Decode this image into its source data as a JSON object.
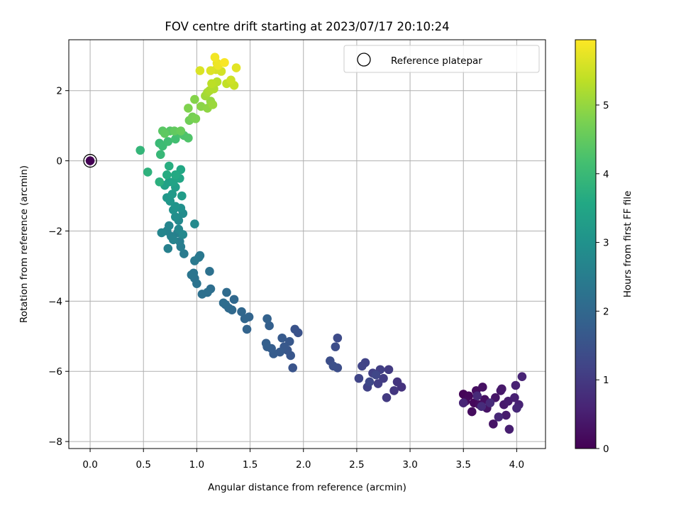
{
  "chart_data": {
    "type": "scatter",
    "title": "FOV centre drift starting at 2023/07/17 20:10:24",
    "xlabel": "Angular distance from reference (arcmin)",
    "ylabel": "Rotation from reference (arcmin)",
    "xlim": [
      -0.2,
      4.27
    ],
    "ylim": [
      -8.2,
      3.45
    ],
    "xticks": [
      0.0,
      0.5,
      1.0,
      1.5,
      2.0,
      2.5,
      3.0,
      3.5,
      4.0
    ],
    "xtick_labels": [
      "0.0",
      "0.5",
      "1.0",
      "1.5",
      "2.0",
      "2.5",
      "3.0",
      "3.5",
      "4.0"
    ],
    "yticks": [
      -8,
      -6,
      -4,
      -2,
      0,
      2
    ],
    "ytick_labels": [
      "−8",
      "−6",
      "−4",
      "−2",
      "0",
      "2"
    ],
    "grid": true,
    "legend": {
      "position": "top-right",
      "entries": [
        "Reference platepar"
      ]
    },
    "reference_point": {
      "x": 0.0,
      "y": 0.0
    },
    "colorbar": {
      "label": "Hours from first FF file",
      "range": [
        0,
        5.95
      ],
      "ticks": [
        0,
        1,
        2,
        3,
        4,
        5
      ],
      "tick_labels": [
        "0",
        "1",
        "2",
        "3",
        "4",
        "5"
      ],
      "colormap": "viridis"
    },
    "series": [
      {
        "points": [
          [
            3.5,
            -6.65,
            0.05
          ],
          [
            3.55,
            -6.7,
            0.1
          ],
          [
            3.6,
            -6.9,
            0.12
          ],
          [
            3.52,
            -6.85,
            0.15
          ],
          [
            3.58,
            -7.15,
            0.18
          ],
          [
            3.65,
            -6.95,
            0.2
          ],
          [
            3.62,
            -6.55,
            0.22
          ],
          [
            3.7,
            -6.8,
            0.25
          ],
          [
            3.68,
            -6.45,
            0.27
          ],
          [
            3.72,
            -7.05,
            0.3
          ],
          [
            3.78,
            -7.5,
            0.32
          ],
          [
            3.8,
            -6.75,
            0.35
          ],
          [
            3.85,
            -6.55,
            0.37
          ],
          [
            3.86,
            -6.5,
            0.4
          ],
          [
            3.88,
            -6.95,
            0.42
          ],
          [
            3.9,
            -7.25,
            0.45
          ],
          [
            3.92,
            -6.85,
            0.47
          ],
          [
            3.93,
            -7.65,
            0.5
          ],
          [
            3.98,
            -6.75,
            0.52
          ],
          [
            3.99,
            -6.4,
            0.55
          ],
          [
            4.02,
            -6.95,
            0.57
          ],
          [
            4.05,
            -6.15,
            0.6
          ],
          [
            3.5,
            -6.9,
            0.62
          ],
          [
            3.83,
            -7.3,
            0.65
          ],
          [
            4.0,
            -7.05,
            0.67
          ],
          [
            3.63,
            -6.7,
            0.7
          ],
          [
            3.75,
            -6.9,
            0.72
          ],
          [
            3.67,
            -7.0,
            0.75
          ],
          [
            2.92,
            -6.45,
            0.85
          ],
          [
            2.88,
            -6.3,
            0.9
          ],
          [
            2.85,
            -6.55,
            0.95
          ],
          [
            2.78,
            -6.75,
            1.0
          ],
          [
            2.8,
            -5.95,
            1.02
          ],
          [
            2.75,
            -6.2,
            1.05
          ],
          [
            2.7,
            -6.35,
            1.08
          ],
          [
            2.72,
            -5.95,
            1.1
          ],
          [
            2.65,
            -6.05,
            1.12
          ],
          [
            2.6,
            -6.45,
            1.15
          ],
          [
            2.58,
            -5.75,
            1.18
          ],
          [
            2.55,
            -5.85,
            1.2
          ],
          [
            2.52,
            -6.2,
            1.22
          ],
          [
            2.68,
            -6.1,
            1.25
          ],
          [
            2.62,
            -6.3,
            1.28
          ],
          [
            2.32,
            -5.05,
            1.35
          ],
          [
            2.3,
            -5.3,
            1.38
          ],
          [
            2.32,
            -5.9,
            1.4
          ],
          [
            2.25,
            -5.7,
            1.42
          ],
          [
            2.28,
            -5.85,
            1.45
          ],
          [
            1.95,
            -4.9,
            1.5
          ],
          [
            1.92,
            -4.8,
            1.52
          ],
          [
            1.9,
            -5.9,
            1.55
          ],
          [
            1.88,
            -5.55,
            1.58
          ],
          [
            1.85,
            -5.4,
            1.6
          ],
          [
            1.87,
            -5.15,
            1.62
          ],
          [
            1.82,
            -5.3,
            1.65
          ],
          [
            1.8,
            -5.05,
            1.67
          ],
          [
            1.78,
            -5.45,
            1.7
          ],
          [
            1.72,
            -5.5,
            1.72
          ],
          [
            1.7,
            -5.35,
            1.75
          ],
          [
            1.66,
            -5.3,
            1.78
          ],
          [
            1.65,
            -5.2,
            1.8
          ],
          [
            1.68,
            -4.7,
            1.82
          ],
          [
            1.66,
            -4.5,
            1.85
          ],
          [
            1.47,
            -4.8,
            1.9
          ],
          [
            1.49,
            -4.45,
            1.92
          ],
          [
            1.45,
            -4.5,
            1.95
          ],
          [
            1.42,
            -4.3,
            1.98
          ],
          [
            1.35,
            -3.95,
            2.0
          ],
          [
            1.33,
            -4.25,
            2.02
          ],
          [
            1.3,
            -4.2,
            2.05
          ],
          [
            1.28,
            -3.75,
            2.07
          ],
          [
            1.27,
            -4.1,
            2.1
          ],
          [
            1.25,
            -4.05,
            2.12
          ],
          [
            1.13,
            -3.65,
            2.15
          ],
          [
            1.1,
            -3.75,
            2.18
          ],
          [
            1.05,
            -3.8,
            2.2
          ],
          [
            1.12,
            -3.15,
            2.22
          ],
          [
            1.0,
            -3.5,
            2.25
          ],
          [
            0.98,
            -3.35,
            2.27
          ],
          [
            0.97,
            -3.2,
            2.3
          ],
          [
            0.95,
            -3.25,
            2.32
          ],
          [
            1.03,
            -2.7,
            2.35
          ],
          [
            1.02,
            -2.75,
            2.37
          ],
          [
            0.98,
            -2.85,
            2.4
          ],
          [
            0.88,
            -2.65,
            2.45
          ],
          [
            0.85,
            -2.45,
            2.5
          ],
          [
            0.84,
            -2.3,
            2.52
          ],
          [
            0.82,
            -2.05,
            2.55
          ],
          [
            0.73,
            -2.5,
            2.57
          ],
          [
            0.76,
            -2.15,
            2.6
          ],
          [
            0.72,
            -2.0,
            2.62
          ],
          [
            0.78,
            -2.25,
            2.65
          ],
          [
            0.67,
            -2.05,
            2.68
          ],
          [
            0.74,
            -1.85,
            2.7
          ],
          [
            0.83,
            -1.95,
            2.72
          ],
          [
            0.87,
            -2.1,
            2.75
          ],
          [
            0.83,
            -1.7,
            2.78
          ],
          [
            0.98,
            -1.8,
            2.8
          ],
          [
            0.87,
            -1.5,
            2.85
          ],
          [
            0.8,
            -1.6,
            2.9
          ],
          [
            0.85,
            -1.35,
            2.95
          ],
          [
            0.78,
            -1.4,
            3.0
          ],
          [
            0.8,
            -1.3,
            3.05
          ],
          [
            0.75,
            -1.15,
            3.1
          ],
          [
            0.72,
            -1.05,
            3.15
          ],
          [
            0.77,
            -0.95,
            3.2
          ],
          [
            0.86,
            -1.0,
            3.25
          ],
          [
            0.8,
            -0.75,
            3.3
          ],
          [
            0.74,
            -0.6,
            3.35
          ],
          [
            0.7,
            -0.7,
            3.4
          ],
          [
            0.78,
            -0.6,
            3.45
          ],
          [
            0.84,
            -0.5,
            3.5
          ],
          [
            0.85,
            -0.25,
            3.55
          ],
          [
            0.8,
            -0.4,
            3.6
          ],
          [
            0.72,
            -0.4,
            3.65
          ],
          [
            0.74,
            -0.15,
            3.7
          ],
          [
            0.65,
            -0.6,
            3.75
          ],
          [
            0.54,
            -0.32,
            3.8
          ],
          [
            0.47,
            0.3,
            3.9
          ],
          [
            0.66,
            0.18,
            3.95
          ],
          [
            0.65,
            0.5,
            4.0
          ],
          [
            0.68,
            0.42,
            4.05
          ],
          [
            0.73,
            0.55,
            4.1
          ],
          [
            0.8,
            0.62,
            4.15
          ],
          [
            0.84,
            0.78,
            4.2
          ],
          [
            0.88,
            0.72,
            4.25
          ],
          [
            0.92,
            0.65,
            4.3
          ],
          [
            0.75,
            0.85,
            4.35
          ],
          [
            0.68,
            0.85,
            4.4
          ],
          [
            0.7,
            0.78,
            4.45
          ],
          [
            0.79,
            0.85,
            4.5
          ],
          [
            0.85,
            0.85,
            4.55
          ],
          [
            0.93,
            1.15,
            4.65
          ],
          [
            0.96,
            1.25,
            4.7
          ],
          [
            0.99,
            1.2,
            4.75
          ],
          [
            0.92,
            1.5,
            4.8
          ],
          [
            0.98,
            1.75,
            4.85
          ],
          [
            1.04,
            1.55,
            4.9
          ],
          [
            1.1,
            1.5,
            4.95
          ],
          [
            1.13,
            1.7,
            5.0
          ],
          [
            1.15,
            1.6,
            5.05
          ],
          [
            1.08,
            1.85,
            5.1
          ],
          [
            1.1,
            1.95,
            5.15
          ],
          [
            1.12,
            2.0,
            5.2
          ],
          [
            1.16,
            2.05,
            5.25
          ],
          [
            1.19,
            2.25,
            5.3
          ],
          [
            1.14,
            2.2,
            5.35
          ],
          [
            1.28,
            2.2,
            5.4
          ],
          [
            1.35,
            2.15,
            5.45
          ],
          [
            1.32,
            2.3,
            5.5
          ],
          [
            1.23,
            2.55,
            5.55
          ],
          [
            1.18,
            2.6,
            5.6
          ],
          [
            1.03,
            2.57,
            5.62
          ],
          [
            1.13,
            2.57,
            5.65
          ],
          [
            1.37,
            2.65,
            5.7
          ],
          [
            1.19,
            2.78,
            5.75
          ],
          [
            1.2,
            2.72,
            5.8
          ],
          [
            1.17,
            2.95,
            5.85
          ],
          [
            1.26,
            2.8,
            5.9
          ]
        ]
      }
    ]
  }
}
